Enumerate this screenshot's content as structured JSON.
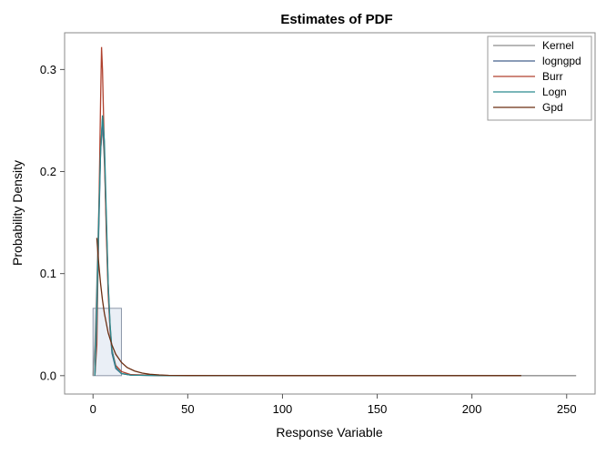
{
  "chart_data": {
    "type": "line",
    "title": "Estimates of PDF",
    "xlabel": "Response Variable",
    "ylabel": "Probability Density",
    "xlim": [
      -15,
      265
    ],
    "ylim": [
      -0.018,
      0.336
    ],
    "xticks": [
      "0",
      "50",
      "100",
      "150",
      "200",
      "250"
    ],
    "yticks": [
      "0.0",
      "0.1",
      "0.2",
      "0.3"
    ],
    "grid": false,
    "legend_position": "top-right",
    "histogram": [
      {
        "x0": 0,
        "x1": 15,
        "density": 0.066
      }
    ],
    "series": [
      {
        "name": "Kernel",
        "color": "#8c8c8c",
        "points": [
          [
            0,
            0.0
          ],
          [
            1,
            0.03
          ],
          [
            2,
            0.09
          ],
          [
            3,
            0.16
          ],
          [
            4,
            0.22
          ],
          [
            5,
            0.245
          ],
          [
            6,
            0.21
          ],
          [
            7,
            0.15
          ],
          [
            8,
            0.09
          ],
          [
            9,
            0.05
          ],
          [
            10,
            0.025
          ],
          [
            12,
            0.008
          ],
          [
            15,
            0.002
          ],
          [
            20,
            0.0005
          ],
          [
            40,
            0.0
          ],
          [
            100,
            0.0
          ],
          [
            200,
            0.0
          ],
          [
            255,
            0.0
          ]
        ]
      },
      {
        "name": "logngpd",
        "color": "#44618c",
        "points": [
          [
            1,
            0.0
          ],
          [
            2,
            0.05
          ],
          [
            3,
            0.14
          ],
          [
            4,
            0.22
          ],
          [
            5,
            0.252
          ],
          [
            6,
            0.22
          ],
          [
            7,
            0.15
          ],
          [
            8,
            0.085
          ],
          [
            9,
            0.045
          ],
          [
            10,
            0.022
          ],
          [
            12,
            0.007
          ],
          [
            15,
            0.002
          ],
          [
            20,
            0.0005
          ],
          [
            40,
            0.0
          ],
          [
            100,
            0.0
          ],
          [
            200,
            0.0
          ],
          [
            226,
            0.0
          ]
        ]
      },
      {
        "name": "Burr",
        "color": "#b0412e",
        "points": [
          [
            1,
            0.0
          ],
          [
            2,
            0.03
          ],
          [
            3,
            0.15
          ],
          [
            4,
            0.27
          ],
          [
            4.5,
            0.322
          ],
          [
            5,
            0.3
          ],
          [
            6,
            0.22
          ],
          [
            7,
            0.14
          ],
          [
            8,
            0.08
          ],
          [
            9,
            0.045
          ],
          [
            10,
            0.025
          ],
          [
            12,
            0.01
          ],
          [
            15,
            0.004
          ],
          [
            20,
            0.001
          ],
          [
            40,
            0.0
          ],
          [
            100,
            0.0
          ],
          [
            200,
            0.0
          ],
          [
            226,
            0.0
          ]
        ]
      },
      {
        "name": "Logn",
        "color": "#2a8a8f",
        "points": [
          [
            1,
            0.0
          ],
          [
            2,
            0.06
          ],
          [
            3,
            0.15
          ],
          [
            4,
            0.22
          ],
          [
            5,
            0.255
          ],
          [
            6,
            0.23
          ],
          [
            7,
            0.16
          ],
          [
            8,
            0.09
          ],
          [
            9,
            0.05
          ],
          [
            10,
            0.025
          ],
          [
            12,
            0.008
          ],
          [
            15,
            0.002
          ],
          [
            20,
            0.0005
          ],
          [
            40,
            0.0
          ],
          [
            100,
            0.0
          ],
          [
            200,
            0.0
          ],
          [
            226,
            0.0
          ]
        ]
      },
      {
        "name": "Gpd",
        "color": "#6b2e12",
        "points": [
          [
            2,
            0.135
          ],
          [
            3,
            0.11
          ],
          [
            4,
            0.09
          ],
          [
            5,
            0.074
          ],
          [
            6,
            0.061
          ],
          [
            8,
            0.042
          ],
          [
            10,
            0.03
          ],
          [
            12,
            0.021
          ],
          [
            15,
            0.013
          ],
          [
            18,
            0.008
          ],
          [
            22,
            0.0045
          ],
          [
            26,
            0.0025
          ],
          [
            30,
            0.0014
          ],
          [
            35,
            0.0007
          ],
          [
            40,
            0.0003
          ],
          [
            50,
            0.0001
          ],
          [
            100,
            0.0
          ],
          [
            226,
            0.0
          ]
        ]
      }
    ]
  }
}
